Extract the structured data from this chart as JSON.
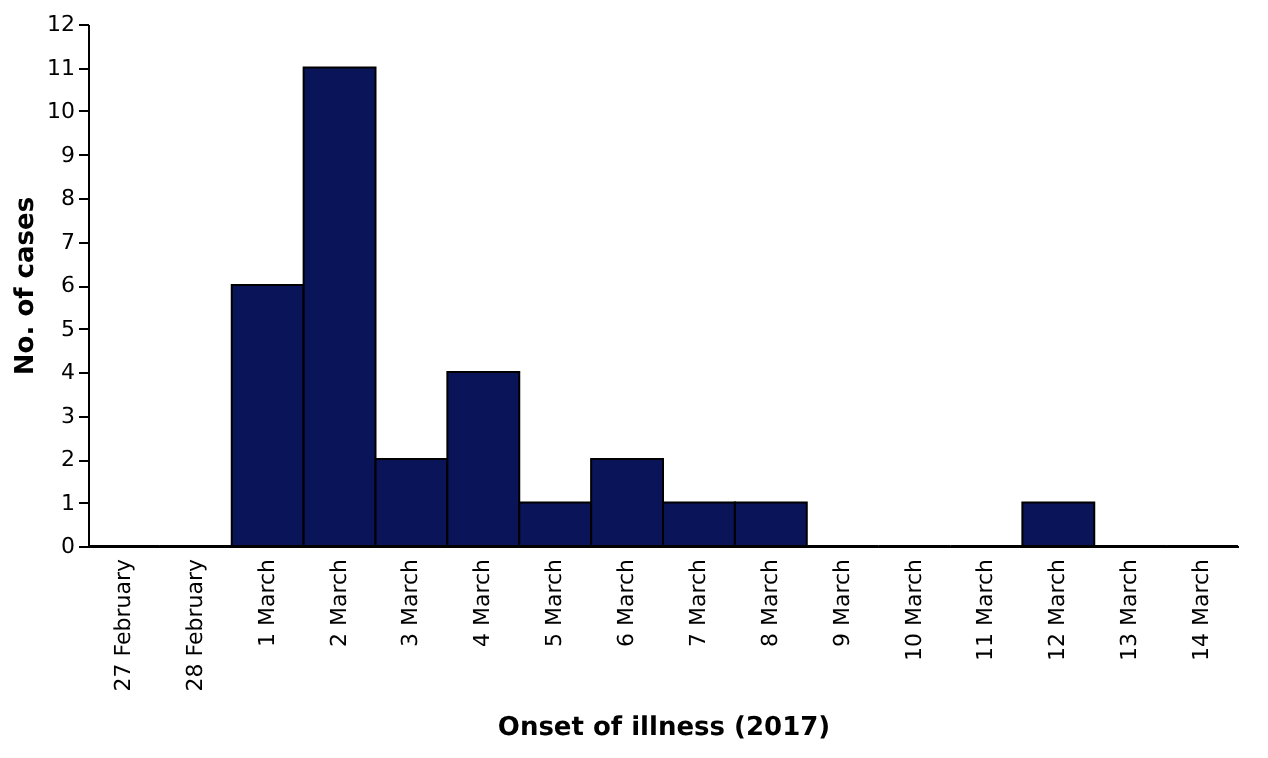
{
  "chart_data": {
    "type": "bar",
    "xlabel": "Onset of illness (2017)",
    "ylabel": "No. of cases",
    "categories": [
      "27 February",
      "28 February",
      "1 March",
      "2 March",
      "3 March",
      "4 March",
      "5 March",
      "6 March",
      "7 March",
      "8 March",
      "9 March",
      "10 March",
      "11 March",
      "12 March",
      "13 March",
      "14 March"
    ],
    "values": [
      0,
      0,
      6,
      11,
      2,
      4,
      1,
      2,
      1,
      1,
      0,
      0,
      0,
      1,
      0,
      0
    ],
    "color": "#0a1459",
    "ylim": [
      0,
      12
    ],
    "yticks": [
      0,
      1,
      2,
      3,
      4,
      5,
      6,
      7,
      8,
      9,
      10,
      11,
      12
    ],
    "grid": false
  }
}
